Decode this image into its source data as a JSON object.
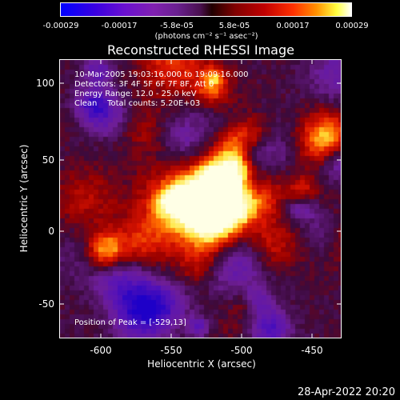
{
  "colorbar": {
    "ticks": [
      "-0.00029",
      "-0.00017",
      "-5.8e-05",
      "5.8e-05",
      "0.00017",
      "0.00029"
    ],
    "unit": "(photons cm⁻² s⁻¹ asec⁻²)"
  },
  "image": {
    "title": "Reconstructed RHESSI Image",
    "info": {
      "time": "10-Mar-2005 19:03:16.000 to 19:09:16.000",
      "detectors": "Detectors: 3F 4F 5F 6F 7F 8F, Att 0",
      "energy": "Energy Range: 12.0 - 25.0 keV",
      "clean": "Clean    Total counts: 5.20E+03"
    },
    "peak": "Position of Peak = [-529,13]",
    "xlabel": "Heliocentric X (arcsec)",
    "ylabel": "Heliocentric Y (arcsec)",
    "xticks": [
      "-600",
      "-550",
      "-500",
      "-450"
    ],
    "yticks": [
      "100",
      "50",
      "0",
      "-50"
    ],
    "x_range": [
      -627,
      -425
    ],
    "y_range": [
      -75,
      120
    ],
    "peak_position": [
      -529,
      13
    ]
  },
  "footer": {
    "timestamp": "28-Apr-2022 20:20"
  }
}
